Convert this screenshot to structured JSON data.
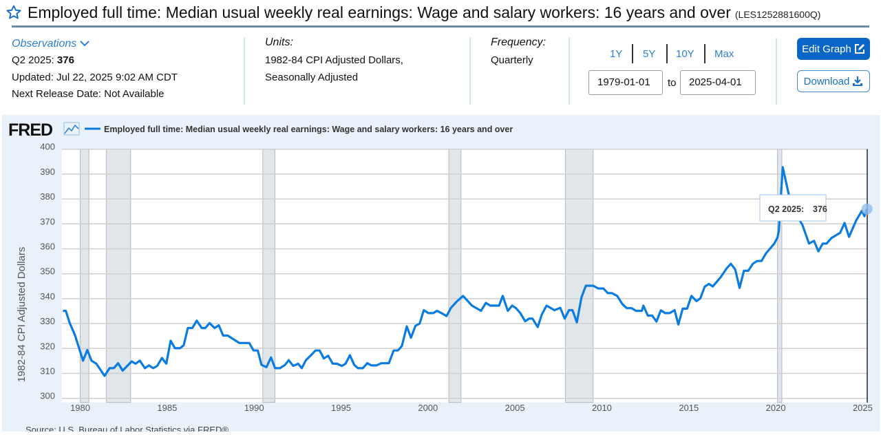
{
  "header": {
    "title": "Employed full time: Median usual weekly real earnings: Wage and salary workers: 16 years and over",
    "series_id": "(LES1252881600Q)"
  },
  "observations": {
    "label": "Observations",
    "period": "Q2 2025:",
    "value": "376",
    "updated": "Updated: Jul 22, 2025 9:02 AM CDT",
    "next_release": "Next Release Date: Not Available"
  },
  "units": {
    "label": "Units:",
    "line1": "1982-84 CPI Adjusted Dollars,",
    "line2": "Seasonally Adjusted"
  },
  "frequency": {
    "label": "Frequency:",
    "value": "Quarterly"
  },
  "range": {
    "buttons": [
      "1Y",
      "5Y",
      "10Y",
      "Max"
    ],
    "start": "1979-01-01",
    "to_label": "to",
    "end": "2025-04-01"
  },
  "actions": {
    "edit": "Edit Graph",
    "download": "Download"
  },
  "colors": {
    "line": "#0a7be0",
    "recession": "#e1e6eb",
    "accent": "#0a66c6"
  },
  "chart_data": {
    "type": "line",
    "logo": "FRED",
    "legend": "Employed full time: Median usual weekly real earnings: Wage and salary workers: 16 years and over",
    "ylabel": "1982-84 CPI Adjusted Dollars",
    "xlabel": "",
    "ylim": [
      300,
      400
    ],
    "xlim": [
      1978.95,
      2025.3
    ],
    "yticks": [
      300,
      310,
      320,
      330,
      340,
      350,
      360,
      370,
      380,
      390,
      400
    ],
    "xticks": [
      1980,
      1985,
      1990,
      1995,
      2000,
      2005,
      2010,
      2015,
      2020,
      2025
    ],
    "grid": true,
    "recessions": [
      [
        1980.0,
        1980.5
      ],
      [
        1981.5,
        1982.9
      ],
      [
        1990.5,
        1991.2
      ],
      [
        2001.2,
        2001.9
      ],
      [
        2007.9,
        2009.5
      ],
      [
        2020.1,
        2020.35
      ]
    ],
    "tooltip": {
      "label": "Q2 2025:",
      "value": "376"
    },
    "source": "Source: U.S. Bureau of Labor Statistics via FRED®",
    "points": [
      [
        1979.0,
        335.1
      ],
      [
        1979.17,
        335.1
      ],
      [
        1979.41,
        330.0
      ],
      [
        1979.7,
        325.4
      ],
      [
        1980.16,
        315.1
      ],
      [
        1980.41,
        319.4
      ],
      [
        1980.65,
        315.1
      ],
      [
        1980.93,
        313.9
      ],
      [
        1981.4,
        309.0
      ],
      [
        1981.69,
        312.1
      ],
      [
        1981.93,
        312.1
      ],
      [
        1982.18,
        314.1
      ],
      [
        1982.44,
        311.1
      ],
      [
        1982.96,
        314.8
      ],
      [
        1983.18,
        313.9
      ],
      [
        1983.43,
        315.1
      ],
      [
        1983.72,
        312.1
      ],
      [
        1983.96,
        313.2
      ],
      [
        1984.2,
        312.1
      ],
      [
        1984.43,
        313.0
      ],
      [
        1984.7,
        316.2
      ],
      [
        1984.95,
        313.9
      ],
      [
        1985.2,
        323.1
      ],
      [
        1985.45,
        320.1
      ],
      [
        1985.74,
        320.1
      ],
      [
        1985.95,
        321.3
      ],
      [
        1986.19,
        328.2
      ],
      [
        1986.45,
        328.2
      ],
      [
        1986.7,
        331.2
      ],
      [
        1986.99,
        328.2
      ],
      [
        1987.19,
        328.2
      ],
      [
        1987.44,
        330.2
      ],
      [
        1987.73,
        328.2
      ],
      [
        1987.97,
        329.3
      ],
      [
        1988.22,
        325.2
      ],
      [
        1988.48,
        325.2
      ],
      [
        1989.15,
        322.2
      ],
      [
        1989.72,
        322.2
      ],
      [
        1989.97,
        319.2
      ],
      [
        1990.21,
        319.2
      ],
      [
        1990.43,
        313.4
      ],
      [
        1990.71,
        312.5
      ],
      [
        1990.97,
        316.4
      ],
      [
        1991.21,
        312.1
      ],
      [
        1991.49,
        312.1
      ],
      [
        1991.78,
        313.4
      ],
      [
        1991.99,
        315.3
      ],
      [
        1992.25,
        313.0
      ],
      [
        1992.53,
        313.9
      ],
      [
        1992.74,
        312.1
      ],
      [
        1992.98,
        315.3
      ],
      [
        1993.27,
        317.3
      ],
      [
        1993.53,
        319.2
      ],
      [
        1993.77,
        319.2
      ],
      [
        1994.01,
        316.0
      ],
      [
        1994.26,
        317.1
      ],
      [
        1994.52,
        313.9
      ],
      [
        1994.76,
        313.9
      ],
      [
        1995.05,
        313.0
      ],
      [
        1995.26,
        313.9
      ],
      [
        1995.51,
        317.3
      ],
      [
        1995.76,
        313.4
      ],
      [
        1995.97,
        312.1
      ],
      [
        1996.25,
        312.1
      ],
      [
        1996.51,
        314.1
      ],
      [
        1996.75,
        313.2
      ],
      [
        1997.04,
        313.2
      ],
      [
        1997.32,
        314.1
      ],
      [
        1997.75,
        314.1
      ],
      [
        1998.03,
        319.2
      ],
      [
        1998.27,
        319.2
      ],
      [
        1998.5,
        321.0
      ],
      [
        1998.78,
        328.9
      ],
      [
        1999.02,
        324.3
      ],
      [
        1999.28,
        329.1
      ],
      [
        1999.52,
        330.0
      ],
      [
        1999.76,
        335.4
      ],
      [
        2000.02,
        334.2
      ],
      [
        2000.3,
        334.2
      ],
      [
        2000.52,
        335.1
      ],
      [
        2000.77,
        334.2
      ],
      [
        2001.07,
        333.0
      ],
      [
        2001.32,
        336.3
      ],
      [
        2001.65,
        338.8
      ],
      [
        2002.02,
        341.1
      ],
      [
        2002.53,
        337.2
      ],
      [
        2003.05,
        335.1
      ],
      [
        2003.33,
        338.3
      ],
      [
        2003.58,
        337.2
      ],
      [
        2004.09,
        337.2
      ],
      [
        2004.3,
        341.1
      ],
      [
        2004.59,
        335.1
      ],
      [
        2004.84,
        337.2
      ],
      [
        2005.06,
        336.2
      ],
      [
        2005.31,
        334.2
      ],
      [
        2005.59,
        330.9
      ],
      [
        2005.81,
        332.0
      ],
      [
        2006.01,
        332.0
      ],
      [
        2006.31,
        328.6
      ],
      [
        2006.55,
        333.7
      ],
      [
        2006.82,
        337.2
      ],
      [
        2007.27,
        335.4
      ],
      [
        2007.61,
        336.3
      ],
      [
        2007.86,
        332.0
      ],
      [
        2008.11,
        335.4
      ],
      [
        2008.31,
        335.4
      ],
      [
        2008.56,
        330.5
      ],
      [
        2008.83,
        340.6
      ],
      [
        2009.08,
        345.2
      ],
      [
        2009.5,
        345.2
      ],
      [
        2009.79,
        344.1
      ],
      [
        2010.09,
        344.1
      ],
      [
        2010.34,
        342.2
      ],
      [
        2010.58,
        342.2
      ],
      [
        2010.88,
        341.1
      ],
      [
        2011.18,
        337.8
      ],
      [
        2011.43,
        336.2
      ],
      [
        2011.71,
        336.2
      ],
      [
        2011.97,
        335.1
      ],
      [
        2012.3,
        335.1
      ],
      [
        2012.39,
        337.2
      ],
      [
        2012.64,
        333.2
      ],
      [
        2012.89,
        333.2
      ],
      [
        2013.14,
        330.8
      ],
      [
        2013.39,
        335.3
      ],
      [
        2013.64,
        334.2
      ],
      [
        2013.9,
        334.2
      ],
      [
        2014.18,
        335.4
      ],
      [
        2014.4,
        329.6
      ],
      [
        2014.65,
        336.0
      ],
      [
        2014.9,
        336.0
      ],
      [
        2015.15,
        341.1
      ],
      [
        2015.44,
        339.0
      ],
      [
        2015.66,
        340.1
      ],
      [
        2015.91,
        344.8
      ],
      [
        2016.16,
        345.9
      ],
      [
        2016.38,
        344.9
      ],
      [
        2016.83,
        348.6
      ],
      [
        2017.17,
        352.1
      ],
      [
        2017.42,
        354.0
      ],
      [
        2017.67,
        351.7
      ],
      [
        2017.92,
        344.3
      ],
      [
        2018.17,
        351.2
      ],
      [
        2018.42,
        351.2
      ],
      [
        2018.68,
        354.0
      ],
      [
        2018.93,
        355.1
      ],
      [
        2019.18,
        355.1
      ],
      [
        2019.43,
        358.1
      ],
      [
        2019.9,
        362.0
      ],
      [
        2020.1,
        364.5
      ],
      [
        2020.18,
        367.3
      ],
      [
        2020.4,
        392.8
      ],
      [
        2020.77,
        381.1
      ],
      [
        2021.14,
        374.2
      ],
      [
        2021.53,
        369.6
      ],
      [
        2021.91,
        362.1
      ],
      [
        2022.2,
        363.2
      ],
      [
        2022.45,
        359.0
      ],
      [
        2022.7,
        362.1
      ],
      [
        2022.92,
        362.1
      ],
      [
        2023.2,
        364.3
      ],
      [
        2023.7,
        366.4
      ],
      [
        2023.96,
        370.4
      ],
      [
        2024.21,
        364.8
      ],
      [
        2024.63,
        371.5
      ],
      [
        2024.96,
        375.3
      ],
      [
        2025.1,
        373.1
      ],
      [
        2025.25,
        376.0
      ]
    ]
  }
}
